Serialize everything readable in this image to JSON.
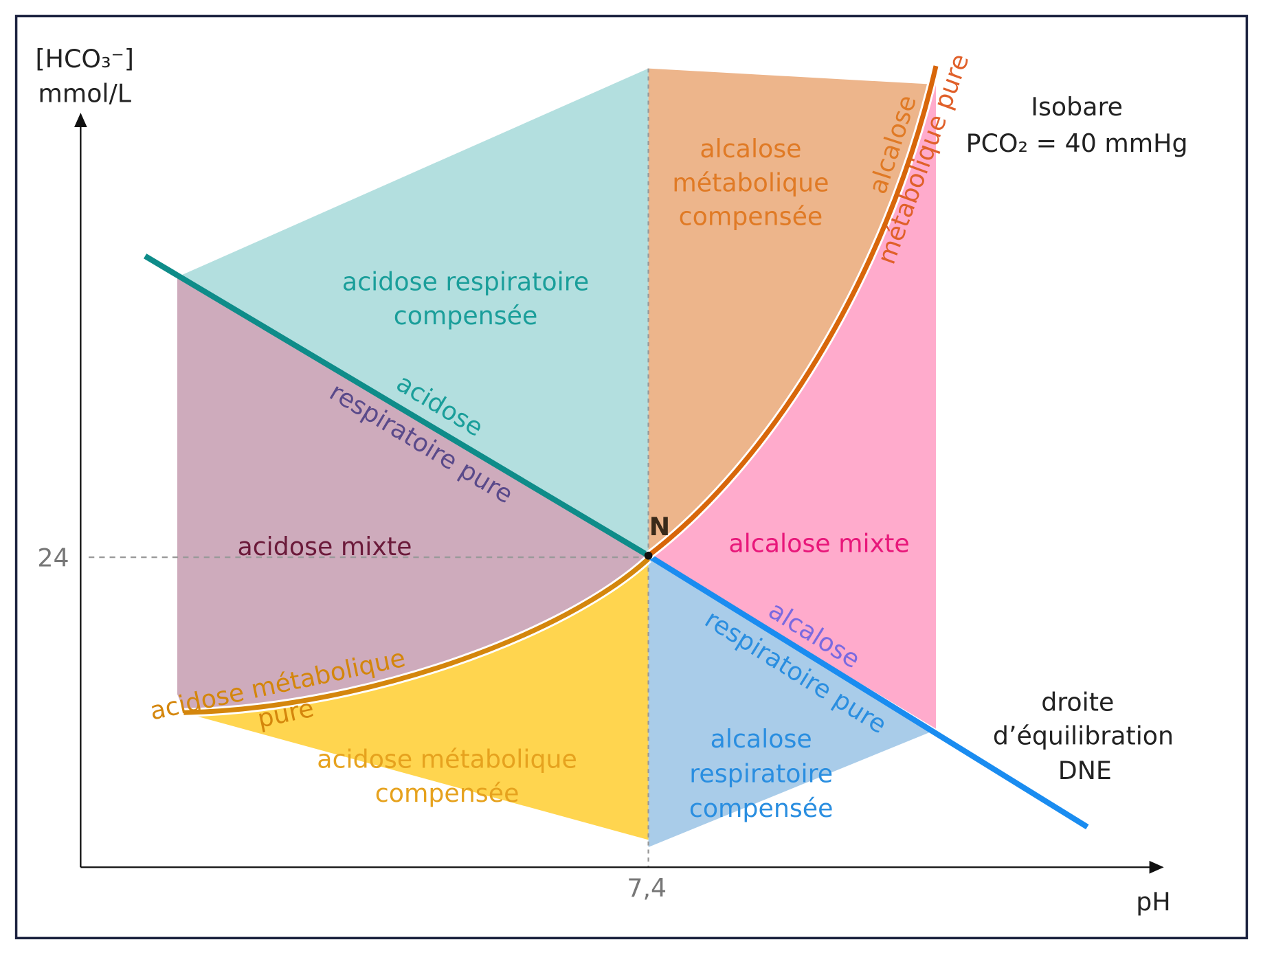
{
  "axes": {
    "y_label": [
      "[HCO₃⁻]",
      "mmol/L"
    ],
    "x_label": "pH",
    "y_tick": "24",
    "x_tick": "7,4"
  },
  "point": "N",
  "isobare": [
    "Isobare",
    "PCO₂ = 40 mmHg"
  ],
  "dne": [
    "droite",
    "d’équilibration",
    "DNE"
  ],
  "regions": [
    {
      "label": [
        "acidose respiratoire",
        "compensée"
      ]
    },
    {
      "label": [
        "alcalose",
        "métabolique",
        "compensée"
      ]
    },
    {
      "label": [
        "acidose mixte"
      ]
    },
    {
      "label": [
        "alcalose mixte"
      ]
    },
    {
      "label": [
        "acidose métabolique",
        "compensée"
      ]
    },
    {
      "label": [
        "alcalose",
        "respiratoire",
        "compensée"
      ]
    }
  ],
  "lines": [
    {
      "label": [
        "acidose",
        "respiratoire pure"
      ]
    },
    {
      "label": [
        "alcalose",
        "respiratoire pure"
      ]
    },
    {
      "label": [
        "alcalose",
        "métabolique pure"
      ]
    },
    {
      "label": [
        "acidose métabolique",
        "pure"
      ]
    }
  ]
}
